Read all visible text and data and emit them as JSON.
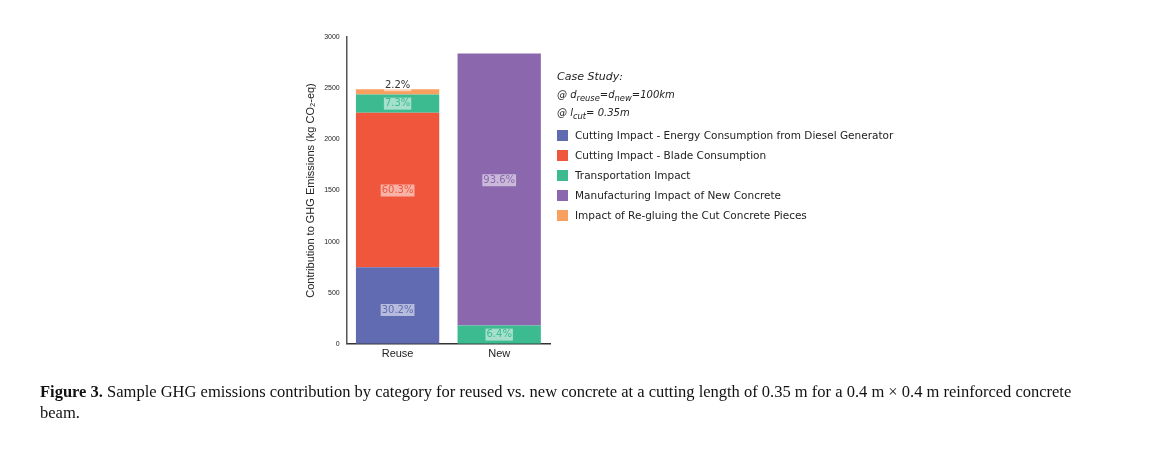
{
  "chart_data": {
    "type": "bar",
    "stacked": true,
    "categories": [
      "Reuse",
      "New"
    ],
    "ylabel": "Contribution to GHG Emissions (kg CO₂-eq)",
    "ylim": [
      0,
      3000
    ],
    "yticks": [
      0,
      500,
      1000,
      1500,
      2000,
      2500,
      3000
    ],
    "grid": false,
    "legend": "right",
    "series": [
      {
        "name": "Cutting Impact - Energy Consumption from Diesel Generator",
        "color": "#616bb2",
        "values": [
          750,
          null
        ]
      },
      {
        "name": "Cutting Impact - Blade Consumption",
        "color": "#f0563c",
        "values": [
          1510,
          null
        ]
      },
      {
        "name": "Transportation Impact",
        "color": "#3bbb8f",
        "values": [
          180,
          180
        ]
      },
      {
        "name": "Manufacturing Impact of New Concrete",
        "color": "#8b67ad",
        "values": [
          null,
          2660
        ]
      },
      {
        "name": "Impact of Re-gluing the Cut Concrete Pieces",
        "color": "#f8a060",
        "values": [
          50,
          null
        ]
      }
    ],
    "annotations": [
      {
        "text": "30.2%",
        "x": "Reuse",
        "y": 330
      },
      {
        "text": "60.3%",
        "x": "Reuse",
        "y": 1500
      },
      {
        "text": "7.3%",
        "x": "Reuse",
        "y": 2350
      },
      {
        "text": "2.2%",
        "x": "Reuse",
        "y": 2530
      },
      {
        "text": "6.4%",
        "x": "New",
        "y": 90
      },
      {
        "text": "93.6%",
        "x": "New",
        "y": 1600
      },
      "Case Study:",
      "@ d$_{reuse}$=d$_{new}$=100km",
      "@ l$_{cut}$= 0.35m",
      "Figure 3. Sample GHG emissions contribution by category for reused vs. new concrete at a cutting length of 0.35 m for a 0.4 m × 0.4 m reinforced concrete beam."
    ]
  }
}
